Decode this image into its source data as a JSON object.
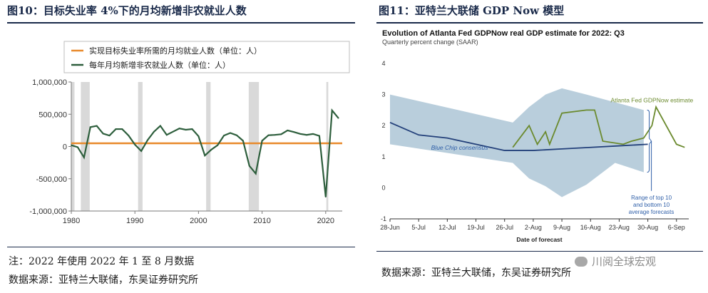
{
  "left": {
    "title": "图10：目标失业率 4%下的月均新增非农就业人数",
    "note": "注：2022 年使用 2022 年 1 至 8 月数据",
    "source": "数据来源：亚特兰大联储，东吴证券研究所"
  },
  "right": {
    "title": "图11：亚特兰大联储 GDP Now 模型",
    "source": "数据来源：亚特兰大联储，东吴证券研究所",
    "watermark": "川阅全球宏观"
  },
  "colors": {
    "title_navy": "#1a2a4a",
    "target_orange": "#e8892a",
    "jobs_green": "#2d5e3c",
    "recession_gray": "#d9d9d9",
    "gdpnow_green": "#6b8a2e",
    "bluechip_navy": "#23407a",
    "range_blue": "#b9cedc",
    "annot_blue": "#2f5fa8"
  },
  "chart_data": [
    {
      "type": "line",
      "title": "",
      "xlabel": "",
      "ylabel": "",
      "ylim": [
        -1000000,
        1000000
      ],
      "xlim": [
        1980,
        2022.6
      ],
      "yticks": [
        -1000000,
        -500000,
        0,
        500000,
        1000000
      ],
      "ytick_labels": [
        "-1,000,000",
        "-500,000",
        "0",
        "500,000",
        "1,000,000"
      ],
      "xticks": [
        1980,
        1990,
        2000,
        2010,
        2020
      ],
      "xtick_labels": [
        "1980",
        "1990",
        "2000",
        "2010",
        "2020"
      ],
      "legend_position": "top-left",
      "grid": false,
      "shaded_periods": [
        [
          1980.0,
          1980.5
        ],
        [
          1981.5,
          1982.9
        ],
        [
          1990.5,
          1991.2
        ],
        [
          2001.2,
          2001.9
        ],
        [
          2007.9,
          2009.5
        ],
        [
          2020.1,
          2020.4
        ]
      ],
      "series": [
        {
          "name": "实现目标失业率所需的月均就业人数（单位：人）",
          "x": [
            1980,
            2022.6
          ],
          "values": [
            50000,
            50000
          ]
        },
        {
          "name": "每年月均新增非农就业人数（单位：人）",
          "x": [
            1980,
            1981,
            1982,
            1983,
            1984,
            1985,
            1986,
            1987,
            1988,
            1989,
            1990,
            1991,
            1992,
            1993,
            1994,
            1995,
            1996,
            1997,
            1998,
            1999,
            2000,
            2001,
            2002,
            2003,
            2004,
            2005,
            2006,
            2007,
            2008,
            2009,
            2010,
            2011,
            2012,
            2013,
            2014,
            2015,
            2016,
            2017,
            2018,
            2019,
            2020,
            2021,
            2022
          ],
          "values": [
            20000,
            -10000,
            -170000,
            300000,
            320000,
            200000,
            170000,
            270000,
            270000,
            170000,
            30000,
            -70000,
            100000,
            230000,
            320000,
            180000,
            230000,
            280000,
            260000,
            270000,
            160000,
            -140000,
            -50000,
            20000,
            170000,
            210000,
            175000,
            90000,
            -300000,
            -420000,
            90000,
            175000,
            180000,
            190000,
            250000,
            225000,
            195000,
            180000,
            195000,
            165000,
            -780000,
            560000,
            440000
          ]
        }
      ]
    },
    {
      "type": "line",
      "title": "Evolution of Atlanta Fed GDPNow real GDP estimate for 2022: Q3",
      "subtitle": "Quarterly percent change (SAAR)",
      "xlabel": "Date of forecast",
      "ylabel": "",
      "ylim": [
        -1,
        4
      ],
      "yticks": [
        -1,
        0,
        1,
        2,
        3,
        4
      ],
      "xlim": [
        "2022-06-28",
        "2022-09-09"
      ],
      "xtick_labels": [
        "28-Jun",
        "5-Jul",
        "12-Jul",
        "19-Jul",
        "26-Jul",
        "2-Aug",
        "9-Aug",
        "16-Aug",
        "23-Aug",
        "30-Aug",
        "6-Sep"
      ],
      "xticks": [
        "2022-06-28",
        "2022-07-05",
        "2022-07-12",
        "2022-07-19",
        "2022-07-26",
        "2022-08-02",
        "2022-08-09",
        "2022-08-16",
        "2022-08-23",
        "2022-08-30",
        "2022-09-06"
      ],
      "range_band": {
        "x": [
          "2022-06-28",
          "2022-07-28",
          "2022-08-01",
          "2022-08-05",
          "2022-08-09",
          "2022-08-15",
          "2022-08-22",
          "2022-08-29",
          "2022-08-29",
          "2022-08-22",
          "2022-08-15",
          "2022-08-09",
          "2022-08-05",
          "2022-08-01",
          "2022-07-28",
          "2022-06-28"
        ],
        "y": [
          3.0,
          2.1,
          2.6,
          3.0,
          3.2,
          3.0,
          2.75,
          2.5,
          0.5,
          0.8,
          0.1,
          -0.3,
          0.05,
          0.3,
          0.8,
          1.4
        ],
        "label": "Range of top 10 and bottom 10 average forecasts"
      },
      "series": [
        {
          "name": "Atlanta Fed GDPNow estimate",
          "x": [
            "2022-07-28",
            "2022-08-01",
            "2022-08-03",
            "2022-08-05",
            "2022-08-06",
            "2022-08-09",
            "2022-08-15",
            "2022-08-17",
            "2022-08-19",
            "2022-08-24",
            "2022-08-26",
            "2022-08-29",
            "2022-08-31",
            "2022-09-01",
            "2022-09-06",
            "2022-09-08"
          ],
          "values": [
            1.3,
            2.0,
            1.4,
            1.8,
            1.4,
            2.4,
            2.5,
            2.5,
            1.5,
            1.4,
            1.5,
            1.6,
            2.0,
            2.6,
            1.4,
            1.3
          ]
        },
        {
          "name": "Blue Chip consensus",
          "x": [
            "2022-06-28",
            "2022-07-05",
            "2022-07-12",
            "2022-07-19",
            "2022-07-26",
            "2022-08-02",
            "2022-08-09",
            "2022-08-16",
            "2022-08-23",
            "2022-08-30"
          ],
          "values": [
            2.1,
            1.7,
            1.6,
            1.4,
            1.2,
            1.2,
            1.25,
            1.3,
            1.35,
            1.4
          ]
        }
      ]
    }
  ]
}
